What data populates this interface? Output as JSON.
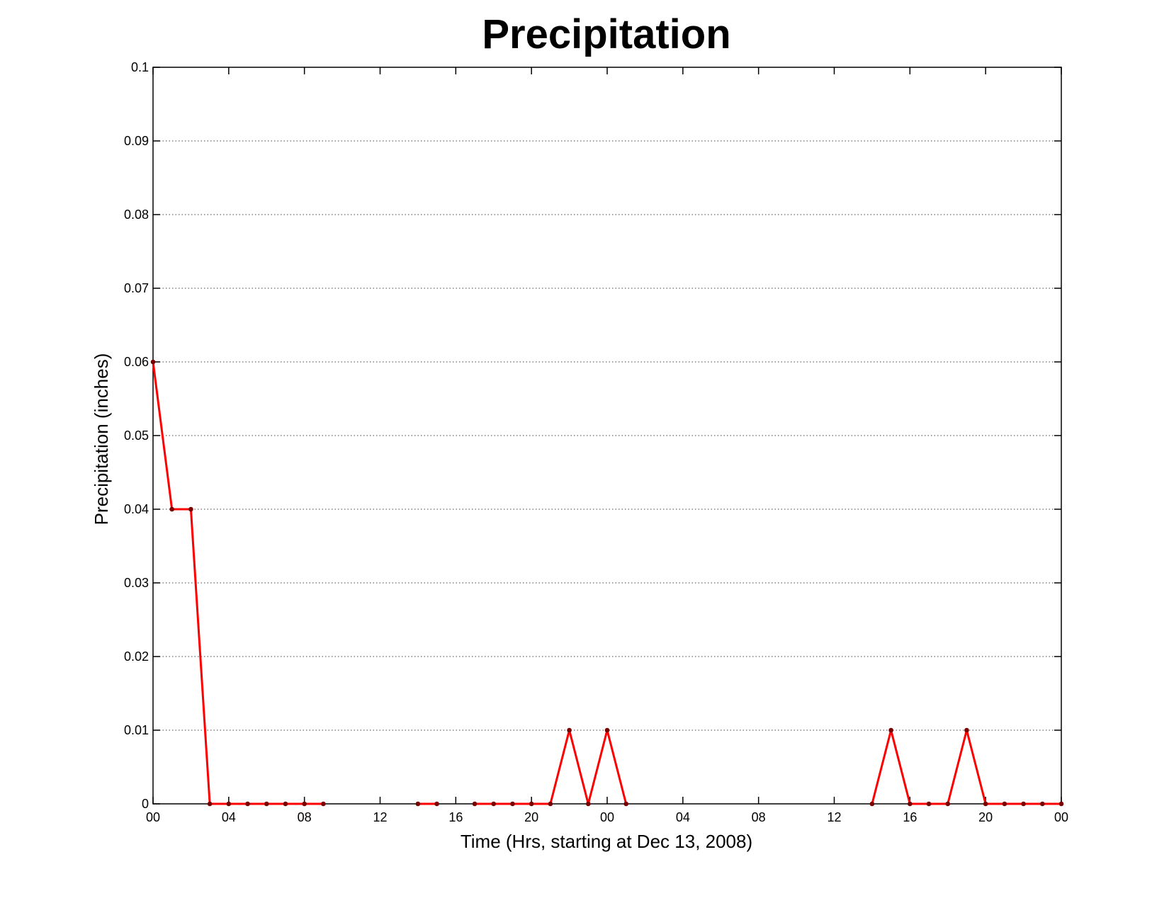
{
  "chart_data": {
    "type": "line",
    "title": "Precipitation",
    "xlabel": "Time (Hrs, starting at Dec 13, 2008)",
    "ylabel": "Precipitation (inches)",
    "xlim": [
      0,
      48
    ],
    "ylim": [
      0,
      0.1
    ],
    "grid": true,
    "x_ticks": [
      {
        "value": 0,
        "label": "00"
      },
      {
        "value": 4,
        "label": "04"
      },
      {
        "value": 8,
        "label": "08"
      },
      {
        "value": 12,
        "label": "12"
      },
      {
        "value": 16,
        "label": "16"
      },
      {
        "value": 20,
        "label": "20"
      },
      {
        "value": 24,
        "label": "00"
      },
      {
        "value": 28,
        "label": "04"
      },
      {
        "value": 32,
        "label": "08"
      },
      {
        "value": 36,
        "label": "12"
      },
      {
        "value": 40,
        "label": "16"
      },
      {
        "value": 44,
        "label": "20"
      },
      {
        "value": 48,
        "label": "00"
      }
    ],
    "y_ticks": [
      {
        "value": 0,
        "label": "0"
      },
      {
        "value": 0.01,
        "label": "0.01"
      },
      {
        "value": 0.02,
        "label": "0.02"
      },
      {
        "value": 0.03,
        "label": "0.03"
      },
      {
        "value": 0.04,
        "label": "0.04"
      },
      {
        "value": 0.05,
        "label": "0.05"
      },
      {
        "value": 0.06,
        "label": "0.06"
      },
      {
        "value": 0.07,
        "label": "0.07"
      },
      {
        "value": 0.08,
        "label": "0.08"
      },
      {
        "value": 0.09,
        "label": "0.09"
      },
      {
        "value": 0.1,
        "label": "0.1"
      }
    ],
    "series": [
      {
        "color": "#ff0000",
        "marker_color": "#7a0000",
        "x": [
          0,
          1,
          2,
          3,
          4,
          5,
          6,
          7,
          8,
          9,
          10,
          11,
          12,
          13,
          14,
          15,
          16,
          17,
          18,
          19,
          20,
          21,
          22,
          23,
          24,
          25,
          26,
          27,
          28,
          29,
          30,
          31,
          32,
          33,
          34,
          35,
          36,
          37,
          38,
          39,
          40,
          41,
          42,
          43,
          44,
          45,
          46,
          47,
          48
        ],
        "y": [
          0.06,
          0.04,
          0.04,
          0,
          0,
          0,
          0,
          0,
          0,
          0,
          null,
          null,
          null,
          null,
          0,
          0,
          null,
          0,
          0,
          0,
          0,
          0,
          0.01,
          0,
          0.01,
          0,
          null,
          null,
          null,
          null,
          null,
          null,
          null,
          null,
          null,
          null,
          null,
          null,
          0,
          0.01,
          0,
          0,
          0,
          0.01,
          0,
          0,
          0,
          0,
          0
        ]
      }
    ]
  }
}
